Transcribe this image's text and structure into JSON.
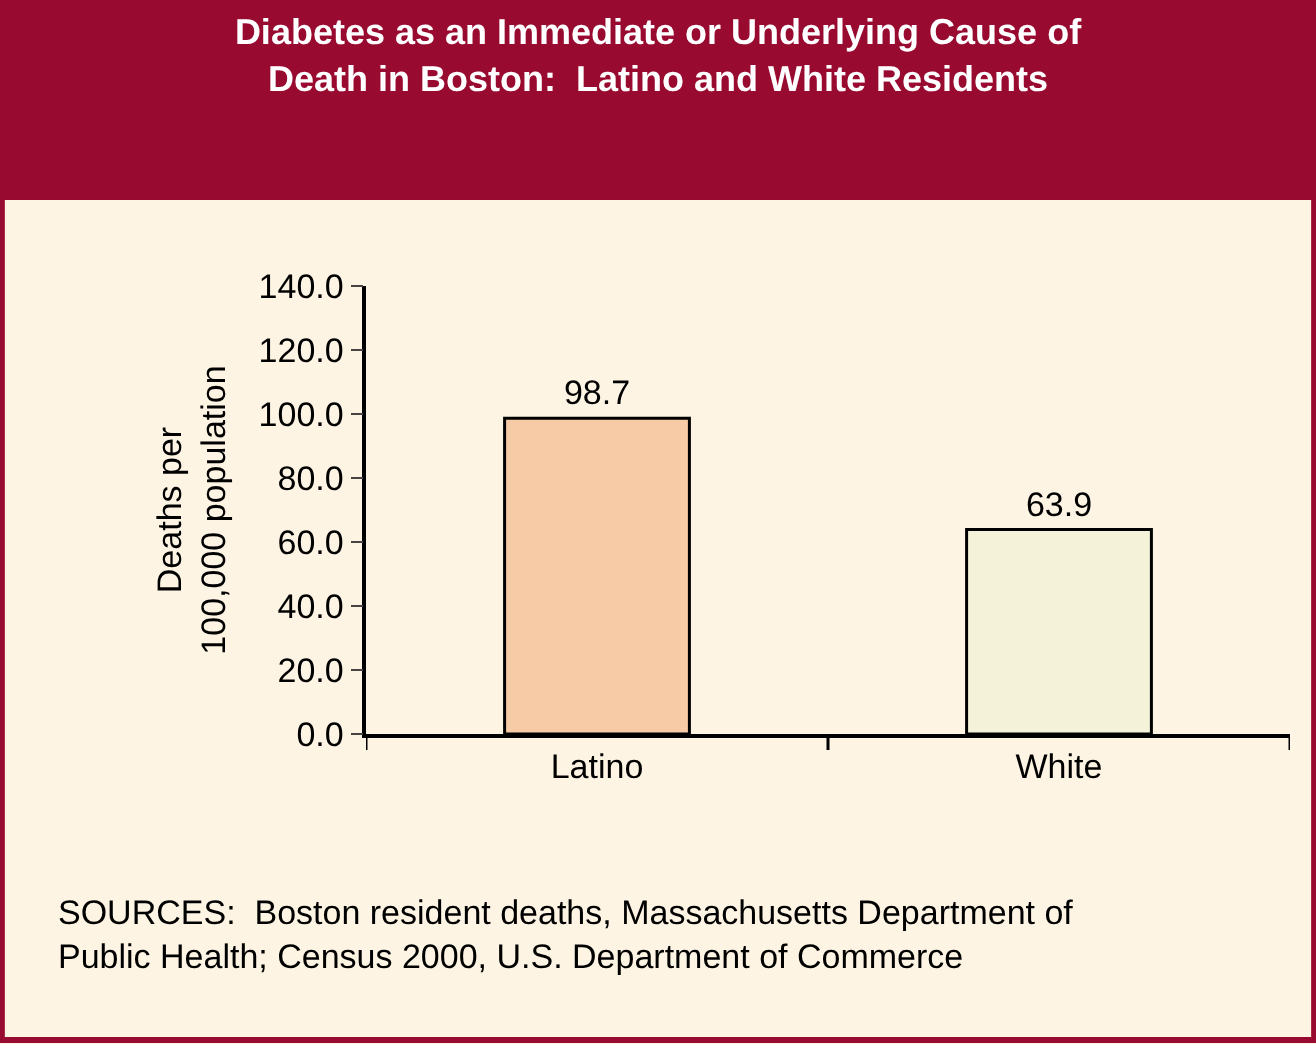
{
  "chart_data": {
    "type": "bar",
    "title": "Diabetes as an Immediate or Underlying Cause of\nDeath in Boston:  Latino and White Residents",
    "ylabel": "Deaths per\n100,000 population",
    "categories": [
      "Latino",
      "White"
    ],
    "values": [
      98.7,
      63.9
    ],
    "colors": [
      "#f7cba5",
      "#f4f3d9"
    ],
    "data_labels": true,
    "ylim": [
      0,
      140
    ],
    "yticks": [
      {
        "value": 0,
        "label": "0.0"
      },
      {
        "value": 20,
        "label": "20.0"
      },
      {
        "value": 40,
        "label": "40.0"
      },
      {
        "value": 60,
        "label": "60.0"
      },
      {
        "value": 80,
        "label": "80.0"
      },
      {
        "value": 100,
        "label": "100.0"
      },
      {
        "value": 120,
        "label": "120.0"
      },
      {
        "value": 140,
        "label": "140.0"
      }
    ],
    "grid": false,
    "annotations": [
      "SOURCES:  Boston resident deaths, Massachusetts Department of\nPublic Health; Census 2000, U.S. Department of Commerce"
    ]
  }
}
